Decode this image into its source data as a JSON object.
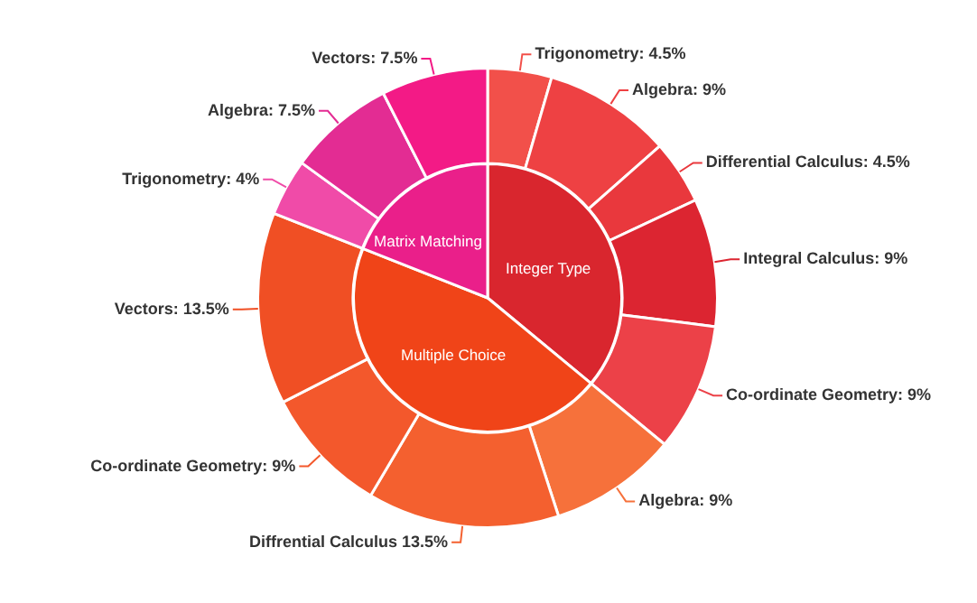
{
  "chart_data": [
    {
      "type": "donut",
      "categories": [
        "Trigonometry: 4.5%",
        "Algebra: 9%",
        "Differential Calculus: 4.5%",
        "Integral Calculus: 9%",
        "Co-ordinate Geometry: 9%",
        "Algebra: 9%",
        "Diffrential Calculus 13.5%",
        "Co-ordinate Geometry: 9%",
        "Vectors: 13.5%",
        "Trigonometry: 4%",
        "Algebra: 7.5%",
        "Vectors: 7.5%"
      ],
      "values": [
        4.5,
        9,
        4.5,
        9,
        9,
        9,
        13.5,
        9,
        13.5,
        4,
        7.5,
        7.5
      ],
      "colors": [
        "#f2504a",
        "#ee4143",
        "#e9383d",
        "#dc2531",
        "#ec4148",
        "#f6713b",
        "#f4602f",
        "#f3582c",
        "#f04f24",
        "#f04ba8",
        "#e32c93",
        "#f31a86"
      ]
    },
    {
      "type": "pie",
      "categories": [
        "Integer Type",
        "Multiple Choice",
        "Matrix Matching"
      ],
      "values": [
        36,
        45,
        19
      ],
      "colors": [
        "#d9262e",
        "#f04418",
        "#ea1f8a"
      ]
    }
  ]
}
